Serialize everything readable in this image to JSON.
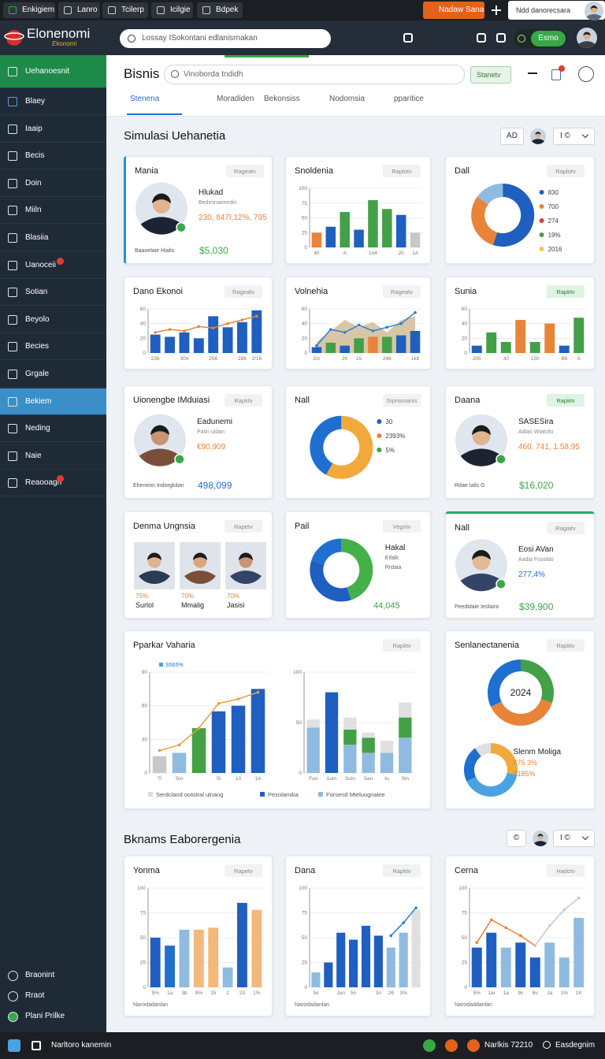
{
  "top_bar": {
    "tabs": [
      "Enkigiem",
      "Lanro",
      "Tcilerp",
      "Icilgie",
      "Bdpek"
    ],
    "alert": "Nadaw Sana",
    "user": "Ndd danorecsara"
  },
  "header": {
    "logo": "Elonenomi",
    "logo_sub": "Ekonomi",
    "search": "Lossay ISokontani edlanisrnakan",
    "button": "Esmo"
  },
  "sidebar": {
    "items": [
      "Uehanoesnit",
      "Blaey",
      "Iaaip",
      "Becis",
      "Doin",
      "Miiln",
      "Blasiia",
      "Uanoceii",
      "Sotian",
      "Beyolo",
      "Becies",
      "Grgale",
      "Bekiem",
      "Neding",
      "Naie",
      "Reaooagn"
    ],
    "highlight_item": 0,
    "active_item": 12,
    "badges": [
      7,
      15
    ],
    "footer": [
      "Braonint",
      "Rraot",
      "Plani Prilke"
    ]
  },
  "page": {
    "title": "Bisnis",
    "search": "Vinoborda tndidh",
    "button": "Stanetv",
    "tabs": [
      "Stenena",
      "Moradiden",
      "Bekonsiss",
      "Nodomsia",
      "pparitice"
    ],
    "active_tab": 0
  },
  "sections": [
    {
      "title": "Simulasi Uehanetia",
      "controls": [
        "AD",
        "I ©"
      ]
    },
    {
      "title": "Bknams Eaborergenia",
      "controls": [
        "©",
        "I ©"
      ]
    }
  ],
  "cards": [
    {
      "title": "Mania",
      "button": "Rageatv",
      "kind": "profile",
      "profile": {
        "name": "Hlukad",
        "detail": "Bedesnaenedin",
        "stats": "230, 847I,12%, 795",
        "caption": "Baaoelaie Hialis",
        "value": "$5,030"
      }
    },
    {
      "title": "Snoldenia",
      "button": "Raplotv",
      "kind": "chart",
      "chart": {
        "type": "bar",
        "categories": [
          "40",
          null,
          "A",
          null,
          "1ö4",
          null,
          "20",
          "1A"
        ],
        "series": [
          {
            "colors": [
              "#e8833a",
              "#1f5fbf",
              "#43a047",
              "#1f5fbf",
              "#43a047",
              "#43a047",
              "#1f5fbf",
              "#c8c8c8"
            ],
            "values": [
              25,
              35,
              60,
              30,
              80,
              65,
              55,
              25
            ]
          }
        ],
        "ylim": [
          0,
          100
        ],
        "yticks": [
          0,
          25,
          50,
          75,
          100
        ]
      }
    },
    {
      "title": "Dall",
      "button": "Raplotv",
      "kind": "donut",
      "donut": {
        "values": [
          55,
          30,
          15
        ],
        "colors": [
          "#1f5fbf",
          "#e8833a",
          "#8fbbe0"
        ]
      },
      "legend": [
        {
          "label": "830",
          "color": "#1f5fbf"
        },
        {
          "label": "700",
          "color": "#e8833a"
        },
        {
          "label": "274",
          "color": "#e53935"
        },
        {
          "label": "19%",
          "color": "#43a047"
        },
        {
          "label": "2016",
          "color": "#f2c94c"
        }
      ]
    },
    {
      "title": "Dano Ekonoi",
      "button": "Rageatv",
      "kind": "chart",
      "chart": {
        "type": "bar",
        "categories": [
          "236",
          null,
          "304",
          null,
          "256",
          null,
          "286",
          "2/16"
        ],
        "series": [
          {
            "color": "#1f5fbf",
            "values": [
              25,
              22,
              28,
              20,
              50,
              35,
              42,
              58
            ]
          }
        ],
        "lines": [
          {
            "color": "#e8833a",
            "values": [
              28,
              32,
              30,
              36,
              34,
              40,
              45,
              50
            ]
          }
        ],
        "ylim": [
          0,
          60
        ],
        "yticks": [
          0,
          20,
          40,
          60
        ]
      }
    },
    {
      "title": "Volnehia",
      "button": "Rageatv",
      "kind": "chart",
      "chart": {
        "type": "bar",
        "categories": [
          "2/z",
          null,
          "20",
          "15",
          null,
          "286",
          null,
          "1k8"
        ],
        "area": {
          "color": "#d8c6a6",
          "values": [
            15,
            30,
            45,
            35,
            42,
            28,
            45,
            50
          ]
        },
        "series": [
          {
            "colors": [
              "#1f5fbf",
              "#43a047",
              "#1f5fbf",
              "#43a047",
              "#e8833a",
              "#43a047",
              "#1f5fbf",
              "#1f5fbf"
            ],
            "values": [
              8,
              14,
              10,
              20,
              22,
              22,
              24,
              30
            ]
          }
        ],
        "lines": [
          {
            "color": "#2a7fd4",
            "values": [
              10,
              32,
              28,
              38,
              30,
              35,
              40,
              55
            ]
          }
        ],
        "ylim": [
          0,
          60
        ],
        "yticks": [
          0,
          20,
          40,
          60
        ]
      }
    },
    {
      "title": "Sunia",
      "button": "Rapktv",
      "kind": "chart",
      "chart": {
        "type": "bar",
        "categories": [
          "205",
          null,
          "30",
          null,
          "150",
          null,
          "B6",
          "A"
        ],
        "series": [
          {
            "colors": [
              "#1f5fbf",
              "#43a047",
              "#43a047",
              "#e8833a",
              "#43a047",
              "#e8833a",
              "#1f5fbf",
              "#43a047"
            ],
            "values": [
              10,
              28,
              15,
              45,
              15,
              40,
              10,
              48
            ]
          }
        ],
        "ylim": [
          0,
          60
        ],
        "yticks": [
          0,
          20,
          40,
          60
        ]
      }
    },
    {
      "title": "Uionengbe IMduiasi",
      "button": "Rapktv",
      "kind": "profile",
      "profile": {
        "name": "Eadunemi",
        "detail": "Patin uidan",
        "stats": "€90,909",
        "caption": "Eheneon Indorgkitan",
        "value": "498,099"
      }
    },
    {
      "title": "Nall",
      "button": "Srpnisnanis",
      "kind": "donut",
      "donut": {
        "values": [
          58,
          42
        ],
        "colors": [
          "#f2a93b",
          "#1f6fd0"
        ]
      },
      "legend": [
        {
          "label": "30",
          "color": "#1f5fbf"
        },
        {
          "label": "2393%",
          "color": "#e8833a"
        },
        {
          "label": "5%",
          "color": "#43a047"
        }
      ]
    },
    {
      "title": "Daana",
      "button": "Rapktv",
      "kind": "profile",
      "profile": {
        "name": "SASESira",
        "detail": "Adlao Wiatcilo",
        "stats": "460, 741, 1.58,95",
        "caption": "Rdae Ialis G",
        "value": "$16,020"
      }
    },
    {
      "title": "Denma Ungnsia",
      "button": "Rapetv",
      "kind": "photos",
      "people": [
        {
          "pct": "75%",
          "name": "Surlol"
        },
        {
          "pct": "70%",
          "name": "Mmalig"
        },
        {
          "pct": "70%",
          "name": "Jasisi"
        }
      ]
    },
    {
      "title": "Pail",
      "button": "Vegntv",
      "kind": "donut",
      "donut": {
        "values": [
          45,
          35,
          20
        ],
        "colors": [
          "#43b04a",
          "#1f5fbf",
          "#1f6fd0"
        ]
      },
      "lines": [
        "Hakal",
        "Eifalk",
        "Rrdaia"
      ],
      "value": "44,045"
    },
    {
      "title": "Nall",
      "button": "Ragiatv",
      "kind": "profile",
      "profile": {
        "name": "Eosi AVan",
        "detail": "Aadia Fosoldo",
        "stats": "277,4%",
        "caption": "Peedidaie Ieolaira",
        "value": "$39,900"
      }
    },
    {
      "title": "Pparkar Vaharia",
      "button": "Rapktv",
      "kind": "split",
      "charts": [
        {
          "type": "bar",
          "note": "S565%",
          "categories": [
            "Ti",
            "Sin",
            null,
            "Si",
            "10",
            "1A"
          ],
          "series": [
            {
              "colors": [
                "#c8c8c8",
                "#8fbbe0",
                "#43a047",
                "#1f5fbf",
                "#1f5fbf",
                "#1f5fbf"
              ],
              "values": [
                15,
                18,
                40,
                55,
                60,
                75
              ]
            }
          ],
          "lines": [
            {
              "color": "#e8a03a",
              "values": [
                20,
                25,
                40,
                62,
                66,
                72
              ]
            }
          ],
          "ylim": [
            0,
            90
          ],
          "yticks": [
            0,
            30,
            60,
            90
          ]
        },
        {
          "type": "bar",
          "stacked": true,
          "categories": [
            "Fon",
            "1um",
            "Soin",
            "Sen",
            "Iu",
            "Sin"
          ],
          "series": [
            {
              "color": "#8fbbe0",
              "values": [
                45,
                0,
                28,
                20,
                20,
                35
              ]
            },
            {
              "color": "#1f5fbf",
              "values": [
                0,
                80,
                0,
                0,
                0,
                0
              ]
            },
            {
              "color": "#43a047",
              "values": [
                0,
                0,
                15,
                15,
                0,
                20
              ]
            },
            {
              "color": "#e0e0e0",
              "values": [
                8,
                0,
                12,
                5,
                12,
                15
              ]
            }
          ],
          "ylim": [
            0,
            100
          ],
          "yticks": [
            0,
            50,
            100
          ]
        }
      ],
      "legend": [
        {
          "label": "Serdcland oototral ulnang",
          "color": "#dddddd"
        },
        {
          "label": "Pezolamika",
          "color": "#1f5fbf"
        },
        {
          "label": "Forsend Mteluognalee",
          "color": "#8fbbe0"
        }
      ]
    },
    {
      "title": "Senlanectanenia",
      "button": "Rapktv",
      "kind": "double-donut",
      "donuts": [
        {
          "values": [
            30,
            38,
            32
          ],
          "colors": [
            "#43a047",
            "#e8833a",
            "#1f6fd0"
          ],
          "center": "2024"
        },
        {
          "values": [
            28,
            40,
            22,
            10
          ],
          "colors": [
            "#f2a93b",
            "#4aa3e0",
            "#1f6fd0",
            "#e0e0e0"
          ]
        }
      ],
      "lines": [
        "Slenm Moliga",
        "475 3%",
        "$185%"
      ]
    },
    {
      "title": "Yonma",
      "button": "Rapetv",
      "kind": "chart",
      "caption": "Narodadanlan",
      "chart": {
        "type": "bar",
        "categories": [
          "5%",
          "1a",
          "3b",
          "9%",
          "15",
          "2",
          "23",
          "1%"
        ],
        "series": [
          {
            "colors": [
              "#1f5fbf",
              "#1f6fd0",
              "#8fbbe0",
              "#f3b97a",
              "#f3b97a",
              "#8fbbe0",
              "#1f5fbf",
              "#f3b97a"
            ],
            "values": [
              50,
              42,
              58,
              58,
              60,
              20,
              85,
              78
            ]
          }
        ],
        "ylim": [
          0,
          100
        ],
        "yticks": [
          0,
          25,
          50,
          75,
          100
        ]
      }
    },
    {
      "title": "Dana",
      "button": "Rapktv",
      "kind": "chart",
      "caption": "Narodadanlan",
      "chart": {
        "type": "bar",
        "categories": [
          "5o",
          null,
          "Jun",
          "5n",
          null,
          "3n",
          "26",
          "3%",
          null
        ],
        "series": [
          {
            "colors": [
              "#8fbbe0",
              "#1f5fbf",
              "#1f5fbf",
              "#1f5fbf",
              "#1f5fbf",
              "#1f5fbf",
              "#8fbbe0",
              "#8fbbe0",
              "#e0e0e0"
            ],
            "values": [
              15,
              25,
              55,
              48,
              62,
              52,
              40,
              55,
              78
            ]
          }
        ],
        "lines": [
          {
            "color": "#2a7fd4",
            "values": [
              null,
              null,
              null,
              null,
              null,
              null,
              52,
              65,
              80
            ]
          }
        ],
        "ylim": [
          0,
          100
        ],
        "yticks": [
          0,
          25,
          50,
          75,
          100
        ]
      }
    },
    {
      "title": "Cerna",
      "button": "Hadctv",
      "kind": "chart",
      "caption": "Narodaddanlan",
      "chart": {
        "type": "bar",
        "categories": [
          "5%",
          "1ai",
          "1a",
          "9s",
          "8u",
          "Ja",
          "1%",
          "1K"
        ],
        "series": [
          {
            "colors": [
              "#1f5fbf",
              "#1f5fbf",
              "#8fbbe0",
              "#1f5fbf",
              "#1f5fbf",
              "#8fbbe0",
              "#8fbbe0",
              "#8fbbe0"
            ],
            "values": [
              40,
              55,
              40,
              45,
              30,
              45,
              30,
              70
            ]
          }
        ],
        "lines": [
          {
            "color": "#e8833a",
            "values": [
              45,
              68,
              60,
              52,
              42,
              null,
              null,
              null
            ]
          },
          {
            "color": "#c8c8c8",
            "values": [
              null,
              null,
              null,
              null,
              42,
              62,
              78,
              90
            ]
          }
        ],
        "ylim": [
          0,
          100
        ],
        "yticks": [
          0,
          25,
          50,
          75,
          100
        ]
      }
    }
  ],
  "footer": {
    "left": "Narltoro kanemin",
    "status": "Narlkis 72210",
    "right": "Easdegnim"
  }
}
